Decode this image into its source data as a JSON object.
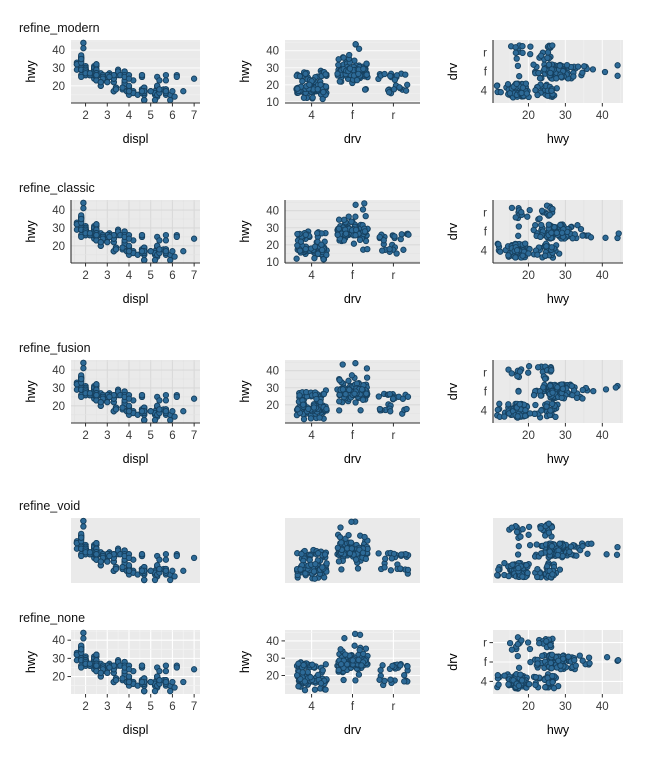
{
  "figure": {
    "rows": [
      {
        "label": "refine_modern",
        "theme": "modern",
        "hwy_ticks_col2": [
          "10",
          "20",
          "30",
          "40"
        ]
      },
      {
        "label": "refine_classic",
        "theme": "classic",
        "hwy_ticks_col2": [
          "10",
          "20",
          "30",
          "40"
        ]
      },
      {
        "label": "refine_fusion",
        "theme": "fusion",
        "hwy_ticks_col2": [
          "20",
          "30",
          "40"
        ]
      },
      {
        "label": "refine_void",
        "theme": "void",
        "hwy_ticks_col2": []
      },
      {
        "label": "refine_none",
        "theme": "none",
        "hwy_ticks_col2": [
          "20",
          "30",
          "40"
        ]
      }
    ],
    "cols": [
      {
        "xlabel": "displ",
        "ylabel": "hwy",
        "x_ticks": [
          "2",
          "3",
          "4",
          "5",
          "6",
          "7"
        ],
        "y_ticks": [
          "20",
          "30",
          "40"
        ]
      },
      {
        "xlabel": "drv",
        "ylabel": "hwy",
        "x_ticks": [
          "4",
          "f",
          "r"
        ]
      },
      {
        "xlabel": "hwy",
        "ylabel": "drv",
        "x_ticks": [
          "20",
          "30",
          "40"
        ],
        "y_ticks": [
          "r",
          "f",
          "4"
        ]
      }
    ]
  },
  "colors": {
    "point_fill": "#2d6a97",
    "point_stroke": "#16405f",
    "panel_bg": "#eaeaea",
    "axis_line": "#2f2f2f",
    "tick_color": "#2f2f2f",
    "tick_label_color": "#383838",
    "axis_title_color": "#000000",
    "row_title_color": "#111111",
    "grid_bright_major": "#fafafa",
    "grid_bright_minor": "#f1f1f1",
    "grid_dark_major": "#d9d9d9",
    "grid_dark_minor": "#e3e3e3",
    "grid_white_major": "#ffffff",
    "grid_white_minor": "#f3f3f3"
  },
  "chart_data": {
    "type": "scatter",
    "description": "5x3 grid of scatter plots of the mpg data under five themes; rows share identical data, columns are hwy~displ, hwy~drv (jittered), drv~hwy (jittered)",
    "row_titles": [
      "refine_modern",
      "refine_classic",
      "refine_fusion",
      "refine_void",
      "refine_none"
    ],
    "panels": [
      {
        "x": "displ",
        "y": "hwy",
        "x_ticks": [
          2,
          3,
          4,
          5,
          6,
          7
        ],
        "y_ticks": [
          20,
          30,
          40
        ],
        "xlim": [
          1.33,
          7.27
        ],
        "ylim": [
          10.4,
          45.6
        ],
        "jitter": false
      },
      {
        "x": "drv",
        "y": "hwy",
        "x_ticks": [
          "4",
          "f",
          "r"
        ],
        "y_ticks_by_row": [
          [
            10,
            20,
            30,
            40
          ],
          [
            10,
            20,
            30,
            40
          ],
          [
            20,
            30,
            40
          ],
          [],
          [
            20,
            30,
            40
          ]
        ],
        "ylim": [
          9.3,
          46.3
        ],
        "jitter": true
      },
      {
        "x": "hwy",
        "y": "drv",
        "x_ticks": [
          20,
          30,
          40
        ],
        "y_ticks": [
          "r",
          "f",
          "4"
        ],
        "xlim": [
          10.4,
          45.6
        ],
        "jitter": true
      }
    ],
    "grid": "major+minor; modern=white-on-gray horizontal/vertical only, classic/fusion=gray crosshatch, none=default white crosshatch, void=blank panel",
    "points_by_drv": {
      "f": [
        [
          1.8,
          29
        ],
        [
          1.8,
          29
        ],
        [
          2.0,
          31
        ],
        [
          2.0,
          30
        ],
        [
          2.8,
          26
        ],
        [
          2.8,
          26
        ],
        [
          3.1,
          27
        ],
        [
          2.4,
          30
        ],
        [
          2.4,
          29
        ],
        [
          3.1,
          26
        ],
        [
          3.5,
          29
        ],
        [
          3.6,
          26
        ],
        [
          2.4,
          24
        ],
        [
          3.0,
          24
        ],
        [
          3.3,
          22
        ],
        [
          3.3,
          22
        ],
        [
          3.3,
          24
        ],
        [
          3.3,
          24
        ],
        [
          3.3,
          17
        ],
        [
          3.8,
          22
        ],
        [
          3.8,
          21
        ],
        [
          3.8,
          23
        ],
        [
          4.0,
          17
        ],
        [
          1.6,
          33
        ],
        [
          1.6,
          32
        ],
        [
          1.6,
          32
        ],
        [
          1.6,
          29
        ],
        [
          1.6,
          32
        ],
        [
          1.8,
          34
        ],
        [
          1.8,
          36
        ],
        [
          1.8,
          36
        ],
        [
          2.0,
          29
        ],
        [
          2.4,
          26
        ],
        [
          2.4,
          27
        ],
        [
          2.4,
          30
        ],
        [
          2.4,
          31
        ],
        [
          2.5,
          31
        ],
        [
          2.5,
          32
        ],
        [
          3.3,
          26
        ],
        [
          2.0,
          28
        ],
        [
          2.0,
          27
        ],
        [
          2.0,
          30
        ],
        [
          2.0,
          29
        ],
        [
          2.7,
          26
        ],
        [
          2.7,
          26
        ],
        [
          2.7,
          27
        ],
        [
          2.4,
          29
        ],
        [
          2.4,
          30
        ],
        [
          2.5,
          31
        ],
        [
          2.5,
          32
        ],
        [
          3.5,
          27
        ],
        [
          3.0,
          26
        ],
        [
          3.0,
          25
        ],
        [
          3.5,
          26
        ],
        [
          3.1,
          26
        ],
        [
          3.8,
          28
        ],
        [
          3.8,
          27
        ],
        [
          3.8,
          28
        ],
        [
          5.3,
          25
        ],
        [
          2.2,
          26
        ],
        [
          2.2,
          27
        ],
        [
          2.4,
          28
        ],
        [
          2.4,
          27
        ],
        [
          3.0,
          26
        ],
        [
          3.0,
          26
        ],
        [
          3.5,
          28
        ],
        [
          2.2,
          26
        ],
        [
          2.2,
          26
        ],
        [
          2.4,
          26
        ],
        [
          2.4,
          27
        ],
        [
          3.0,
          26
        ],
        [
          3.0,
          26
        ],
        [
          3.3,
          26
        ],
        [
          1.8,
          30
        ],
        [
          1.8,
          33
        ],
        [
          1.8,
          35
        ],
        [
          1.8,
          37
        ],
        [
          1.8,
          35
        ],
        [
          2.0,
          29
        ],
        [
          2.0,
          26
        ],
        [
          2.0,
          29
        ],
        [
          2.0,
          29
        ],
        [
          2.8,
          24
        ],
        [
          1.9,
          44
        ],
        [
          2.0,
          29
        ],
        [
          2.0,
          26
        ],
        [
          2.0,
          29
        ],
        [
          2.0,
          29
        ],
        [
          2.5,
          29
        ],
        [
          2.5,
          29
        ],
        [
          2.8,
          23
        ],
        [
          1.9,
          44
        ],
        [
          1.9,
          41
        ],
        [
          2.0,
          29
        ],
        [
          2.0,
          26
        ],
        [
          2.5,
          28
        ],
        [
          2.5,
          29
        ],
        [
          1.8,
          29
        ],
        [
          1.8,
          29
        ],
        [
          2.0,
          28
        ],
        [
          2.0,
          29
        ],
        [
          2.8,
          26
        ],
        [
          2.8,
          26
        ],
        [
          3.6,
          26
        ]
      ],
      "4": [
        [
          1.8,
          26
        ],
        [
          1.8,
          25
        ],
        [
          2.0,
          28
        ],
        [
          2.0,
          27
        ],
        [
          2.8,
          25
        ],
        [
          2.8,
          25
        ],
        [
          3.1,
          25
        ],
        [
          3.1,
          25
        ],
        [
          2.8,
          24
        ],
        [
          3.1,
          25
        ],
        [
          4.2,
          23
        ],
        [
          5.3,
          14
        ],
        [
          5.3,
          19
        ],
        [
          5.7,
          15
        ],
        [
          6.5,
          17
        ],
        [
          3.7,
          19
        ],
        [
          3.7,
          18
        ],
        [
          3.9,
          17
        ],
        [
          3.9,
          17
        ],
        [
          4.7,
          19
        ],
        [
          4.7,
          19
        ],
        [
          4.7,
          12
        ],
        [
          5.2,
          17
        ],
        [
          5.2,
          15
        ],
        [
          3.9,
          17
        ],
        [
          4.7,
          17
        ],
        [
          4.7,
          12
        ],
        [
          4.7,
          17
        ],
        [
          4.7,
          16
        ],
        [
          4.7,
          18
        ],
        [
          4.7,
          15
        ],
        [
          5.2,
          16
        ],
        [
          5.7,
          18
        ],
        [
          5.9,
          15
        ],
        [
          4.7,
          17
        ],
        [
          4.7,
          15
        ],
        [
          4.7,
          17
        ],
        [
          4.7,
          17
        ],
        [
          4.7,
          12
        ],
        [
          4.7,
          17
        ],
        [
          5.2,
          16
        ],
        [
          5.2,
          12
        ],
        [
          5.7,
          16
        ],
        [
          5.9,
          12
        ],
        [
          4.0,
          17
        ],
        [
          4.0,
          17
        ],
        [
          4.0,
          16
        ],
        [
          4.0,
          18
        ],
        [
          4.6,
          18
        ],
        [
          5.0,
          17
        ],
        [
          4.2,
          17
        ],
        [
          4.2,
          16
        ],
        [
          4.6,
          18
        ],
        [
          4.6,
          18
        ],
        [
          4.6,
          17
        ],
        [
          5.4,
          17
        ],
        [
          3.0,
          22
        ],
        [
          3.7,
          19
        ],
        [
          4.0,
          17
        ],
        [
          4.7,
          18
        ],
        [
          4.7,
          17
        ],
        [
          4.7,
          19
        ],
        [
          5.7,
          18
        ],
        [
          6.1,
          14
        ],
        [
          4.0,
          15
        ],
        [
          4.2,
          16
        ],
        [
          4.4,
          15
        ],
        [
          4.6,
          16
        ],
        [
          4.0,
          17
        ],
        [
          4.0,
          19
        ],
        [
          4.6,
          17
        ],
        [
          5.0,
          17
        ],
        [
          3.3,
          17
        ],
        [
          3.3,
          17
        ],
        [
          4.0,
          18
        ],
        [
          5.6,
          18
        ],
        [
          2.5,
          26
        ],
        [
          2.5,
          25
        ],
        [
          2.5,
          27
        ],
        [
          2.5,
          25
        ],
        [
          2.5,
          27
        ],
        [
          2.5,
          23
        ],
        [
          2.2,
          26
        ],
        [
          2.2,
          27
        ],
        [
          2.5,
          25
        ],
        [
          2.5,
          27
        ],
        [
          2.5,
          26
        ],
        [
          2.5,
          23
        ],
        [
          2.5,
          26
        ],
        [
          2.5,
          26
        ],
        [
          2.7,
          20
        ],
        [
          2.7,
          22
        ],
        [
          3.4,
          19
        ],
        [
          3.4,
          19
        ],
        [
          4.0,
          17
        ],
        [
          4.7,
          16
        ],
        [
          4.7,
          17
        ],
        [
          5.7,
          18
        ],
        [
          2.7,
          22
        ],
        [
          2.7,
          20
        ],
        [
          2.7,
          22
        ],
        [
          3.4,
          19
        ],
        [
          3.4,
          18
        ],
        [
          4.0,
          20
        ],
        [
          4.0,
          17
        ]
      ],
      "r": [
        [
          5.3,
          20
        ],
        [
          5.3,
          15
        ],
        [
          5.3,
          20
        ],
        [
          5.7,
          17
        ],
        [
          6.0,
          17
        ],
        [
          5.7,
          26
        ],
        [
          5.7,
          23
        ],
        [
          6.2,
          26
        ],
        [
          6.2,
          25
        ],
        [
          7.0,
          24
        ],
        [
          4.6,
          17
        ],
        [
          5.4,
          17
        ],
        [
          5.4,
          18
        ],
        [
          3.8,
          26
        ],
        [
          3.8,
          25
        ],
        [
          4.0,
          26
        ],
        [
          4.0,
          24
        ],
        [
          4.6,
          25
        ],
        [
          4.6,
          25
        ],
        [
          4.6,
          26
        ],
        [
          4.6,
          26
        ],
        [
          5.4,
          23
        ],
        [
          5.4,
          17
        ],
        [
          5.4,
          16
        ],
        [
          5.4,
          18
        ]
      ]
    }
  }
}
